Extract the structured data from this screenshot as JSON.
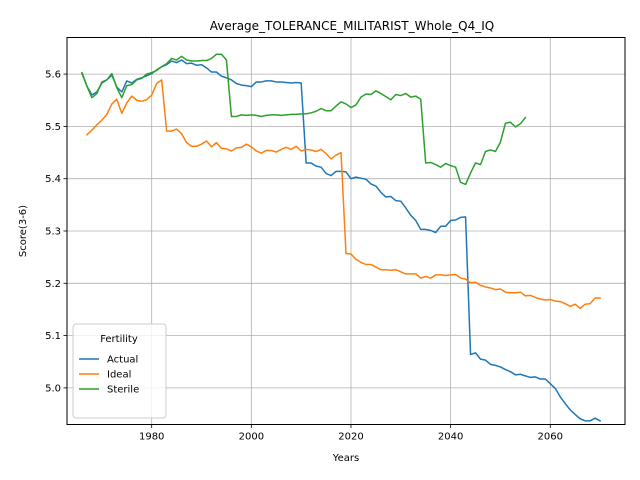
{
  "chart_data": {
    "type": "line",
    "title": "Average_TOLERANCE_MILITARIST_Whole_Q4_IQ",
    "xlabel": "Years",
    "ylabel": "Score(3-6)",
    "xlim": [
      1963,
      2075
    ],
    "ylim": [
      4.93,
      5.67
    ],
    "xticks": [
      1980,
      2000,
      2020,
      2040,
      2060
    ],
    "yticks": [
      5.0,
      5.1,
      5.2,
      5.3,
      5.4,
      5.5,
      5.6
    ],
    "ytick_labels": [
      "5.0",
      "5.1",
      "5.2",
      "5.3",
      "5.4",
      "5.5",
      "5.6"
    ],
    "grid": true,
    "legend": {
      "title": "Fertility",
      "position": "lower-left"
    },
    "series": [
      {
        "name": "Actual",
        "color": "#1f77b4",
        "points": [
          [
            1966,
            5.601
          ],
          [
            1967,
            5.577
          ],
          [
            1968,
            5.56
          ],
          [
            1969,
            5.566
          ],
          [
            1970,
            5.583
          ],
          [
            1971,
            5.589
          ],
          [
            1972,
            5.598
          ],
          [
            1973,
            5.575
          ],
          [
            1974,
            5.566
          ],
          [
            1975,
            5.587
          ],
          [
            1976,
            5.583
          ],
          [
            1977,
            5.59
          ],
          [
            1978,
            5.593
          ],
          [
            1979,
            5.597
          ],
          [
            1980,
            5.601
          ],
          [
            1981,
            5.608
          ],
          [
            1982,
            5.614
          ],
          [
            1983,
            5.618
          ],
          [
            1984,
            5.625
          ],
          [
            1985,
            5.622
          ],
          [
            1986,
            5.627
          ],
          [
            1987,
            5.62
          ],
          [
            1988,
            5.621
          ],
          [
            1989,
            5.617
          ],
          [
            1990,
            5.618
          ],
          [
            1991,
            5.612
          ],
          [
            1992,
            5.604
          ],
          [
            1993,
            5.604
          ],
          [
            1994,
            5.596
          ],
          [
            1995,
            5.593
          ],
          [
            1996,
            5.589
          ],
          [
            1997,
            5.582
          ],
          [
            1998,
            5.579
          ],
          [
            1999,
            5.578
          ],
          [
            2000,
            5.576
          ],
          [
            2001,
            5.585
          ],
          [
            2002,
            5.585
          ],
          [
            2003,
            5.587
          ],
          [
            2004,
            5.587
          ],
          [
            2005,
            5.585
          ],
          [
            2006,
            5.585
          ],
          [
            2007,
            5.584
          ],
          [
            2008,
            5.583
          ],
          [
            2009,
            5.584
          ],
          [
            2010,
            5.583
          ],
          [
            2011,
            5.43
          ],
          [
            2012,
            5.43
          ],
          [
            2013,
            5.424
          ],
          [
            2014,
            5.422
          ],
          [
            2015,
            5.41
          ],
          [
            2016,
            5.406
          ],
          [
            2017,
            5.414
          ],
          [
            2018,
            5.414
          ],
          [
            2019,
            5.413
          ],
          [
            2020,
            5.4
          ],
          [
            2021,
            5.403
          ],
          [
            2022,
            5.401
          ],
          [
            2023,
            5.399
          ],
          [
            2024,
            5.39
          ],
          [
            2025,
            5.386
          ],
          [
            2026,
            5.374
          ],
          [
            2027,
            5.365
          ],
          [
            2028,
            5.366
          ],
          [
            2029,
            5.358
          ],
          [
            2030,
            5.357
          ],
          [
            2031,
            5.344
          ],
          [
            2032,
            5.33
          ],
          [
            2033,
            5.32
          ],
          [
            2034,
            5.303
          ],
          [
            2035,
            5.303
          ],
          [
            2036,
            5.301
          ],
          [
            2037,
            5.297
          ],
          [
            2038,
            5.309
          ],
          [
            2039,
            5.309
          ],
          [
            2040,
            5.32
          ],
          [
            2041,
            5.321
          ],
          [
            2042,
            5.326
          ],
          [
            2043,
            5.327
          ],
          [
            2044,
            5.064
          ],
          [
            2045,
            5.067
          ],
          [
            2046,
            5.055
          ],
          [
            2047,
            5.053
          ],
          [
            2048,
            5.045
          ],
          [
            2049,
            5.043
          ],
          [
            2050,
            5.04
          ],
          [
            2051,
            5.035
          ],
          [
            2052,
            5.031
          ],
          [
            2053,
            5.025
          ],
          [
            2054,
            5.026
          ],
          [
            2055,
            5.023
          ],
          [
            2056,
            5.02
          ],
          [
            2057,
            5.021
          ],
          [
            2058,
            5.017
          ],
          [
            2059,
            5.017
          ],
          [
            2060,
            5.008
          ],
          [
            2061,
            4.999
          ],
          [
            2062,
            4.983
          ],
          [
            2063,
            4.97
          ],
          [
            2064,
            4.958
          ],
          [
            2065,
            4.949
          ],
          [
            2066,
            4.941
          ],
          [
            2067,
            4.937
          ],
          [
            2068,
            4.937
          ],
          [
            2069,
            4.942
          ],
          [
            2070,
            4.937
          ]
        ]
      },
      {
        "name": "Ideal",
        "color": "#ff7f0e",
        "points": [
          [
            1967,
            5.484
          ],
          [
            1968,
            5.493
          ],
          [
            1969,
            5.503
          ],
          [
            1970,
            5.512
          ],
          [
            1971,
            5.523
          ],
          [
            1972,
            5.543
          ],
          [
            1973,
            5.552
          ],
          [
            1974,
            5.525
          ],
          [
            1975,
            5.545
          ],
          [
            1976,
            5.558
          ],
          [
            1977,
            5.55
          ],
          [
            1978,
            5.548
          ],
          [
            1979,
            5.551
          ],
          [
            1980,
            5.56
          ],
          [
            1981,
            5.582
          ],
          [
            1982,
            5.589
          ],
          [
            1983,
            5.491
          ],
          [
            1984,
            5.491
          ],
          [
            1985,
            5.495
          ],
          [
            1986,
            5.486
          ],
          [
            1987,
            5.469
          ],
          [
            1988,
            5.462
          ],
          [
            1989,
            5.462
          ],
          [
            1990,
            5.466
          ],
          [
            1991,
            5.472
          ],
          [
            1992,
            5.461
          ],
          [
            1993,
            5.469
          ],
          [
            1994,
            5.458
          ],
          [
            1995,
            5.457
          ],
          [
            1996,
            5.453
          ],
          [
            1997,
            5.459
          ],
          [
            1998,
            5.46
          ],
          [
            1999,
            5.466
          ],
          [
            2000,
            5.461
          ],
          [
            2001,
            5.453
          ],
          [
            2002,
            5.449
          ],
          [
            2003,
            5.454
          ],
          [
            2004,
            5.454
          ],
          [
            2005,
            5.451
          ],
          [
            2006,
            5.456
          ],
          [
            2007,
            5.46
          ],
          [
            2008,
            5.456
          ],
          [
            2009,
            5.462
          ],
          [
            2010,
            5.453
          ],
          [
            2011,
            5.456
          ],
          [
            2012,
            5.455
          ],
          [
            2013,
            5.452
          ],
          [
            2014,
            5.456
          ],
          [
            2015,
            5.448
          ],
          [
            2016,
            5.438
          ],
          [
            2017,
            5.445
          ],
          [
            2018,
            5.45
          ],
          [
            2019,
            5.257
          ],
          [
            2020,
            5.256
          ],
          [
            2021,
            5.246
          ],
          [
            2022,
            5.24
          ],
          [
            2023,
            5.236
          ],
          [
            2024,
            5.236
          ],
          [
            2025,
            5.231
          ],
          [
            2026,
            5.226
          ],
          [
            2027,
            5.226
          ],
          [
            2028,
            5.225
          ],
          [
            2029,
            5.226
          ],
          [
            2030,
            5.222
          ],
          [
            2031,
            5.218
          ],
          [
            2032,
            5.218
          ],
          [
            2033,
            5.218
          ],
          [
            2034,
            5.21
          ],
          [
            2035,
            5.213
          ],
          [
            2036,
            5.21
          ],
          [
            2037,
            5.216
          ],
          [
            2038,
            5.216
          ],
          [
            2039,
            5.215
          ],
          [
            2040,
            5.216
          ],
          [
            2041,
            5.217
          ],
          [
            2042,
            5.21
          ],
          [
            2043,
            5.208
          ],
          [
            2044,
            5.201
          ],
          [
            2045,
            5.202
          ],
          [
            2046,
            5.196
          ],
          [
            2047,
            5.193
          ],
          [
            2048,
            5.191
          ],
          [
            2049,
            5.188
          ],
          [
            2050,
            5.189
          ],
          [
            2051,
            5.183
          ],
          [
            2052,
            5.182
          ],
          [
            2053,
            5.182
          ],
          [
            2054,
            5.183
          ],
          [
            2055,
            5.176
          ],
          [
            2056,
            5.177
          ],
          [
            2057,
            5.173
          ],
          [
            2058,
            5.17
          ],
          [
            2059,
            5.168
          ],
          [
            2060,
            5.169
          ],
          [
            2061,
            5.166
          ],
          [
            2062,
            5.165
          ],
          [
            2063,
            5.161
          ],
          [
            2064,
            5.156
          ],
          [
            2065,
            5.16
          ],
          [
            2066,
            5.152
          ],
          [
            2067,
            5.16
          ],
          [
            2068,
            5.161
          ],
          [
            2069,
            5.172
          ],
          [
            2070,
            5.172
          ]
        ]
      },
      {
        "name": "Sterile",
        "color": "#2ca02c",
        "points": [
          [
            1966,
            5.603
          ],
          [
            1967,
            5.577
          ],
          [
            1968,
            5.555
          ],
          [
            1969,
            5.563
          ],
          [
            1970,
            5.585
          ],
          [
            1971,
            5.589
          ],
          [
            1972,
            5.601
          ],
          [
            1973,
            5.574
          ],
          [
            1974,
            5.555
          ],
          [
            1975,
            5.578
          ],
          [
            1976,
            5.58
          ],
          [
            1977,
            5.589
          ],
          [
            1978,
            5.592
          ],
          [
            1979,
            5.6
          ],
          [
            1980,
            5.603
          ],
          [
            1981,
            5.607
          ],
          [
            1982,
            5.614
          ],
          [
            1983,
            5.62
          ],
          [
            1984,
            5.63
          ],
          [
            1985,
            5.627
          ],
          [
            1986,
            5.634
          ],
          [
            1987,
            5.627
          ],
          [
            1988,
            5.625
          ],
          [
            1989,
            5.625
          ],
          [
            1990,
            5.626
          ],
          [
            1991,
            5.626
          ],
          [
            1992,
            5.63
          ],
          [
            1993,
            5.638
          ],
          [
            1994,
            5.638
          ],
          [
            1995,
            5.627
          ],
          [
            1996,
            5.519
          ],
          [
            1997,
            5.519
          ],
          [
            1998,
            5.522
          ],
          [
            1999,
            5.521
          ],
          [
            2000,
            5.522
          ],
          [
            2001,
            5.521
          ],
          [
            2002,
            5.519
          ],
          [
            2003,
            5.521
          ],
          [
            2004,
            5.522
          ],
          [
            2005,
            5.522
          ],
          [
            2006,
            5.521
          ],
          [
            2007,
            5.522
          ],
          [
            2008,
            5.523
          ],
          [
            2009,
            5.523
          ],
          [
            2010,
            5.524
          ],
          [
            2011,
            5.524
          ],
          [
            2012,
            5.526
          ],
          [
            2013,
            5.529
          ],
          [
            2014,
            5.534
          ],
          [
            2015,
            5.53
          ],
          [
            2016,
            5.53
          ],
          [
            2017,
            5.539
          ],
          [
            2018,
            5.547
          ],
          [
            2019,
            5.543
          ],
          [
            2020,
            5.536
          ],
          [
            2021,
            5.541
          ],
          [
            2022,
            5.556
          ],
          [
            2023,
            5.562
          ],
          [
            2024,
            5.561
          ],
          [
            2025,
            5.568
          ],
          [
            2026,
            5.563
          ],
          [
            2027,
            5.557
          ],
          [
            2028,
            5.551
          ],
          [
            2029,
            5.561
          ],
          [
            2030,
            5.559
          ],
          [
            2031,
            5.563
          ],
          [
            2032,
            5.556
          ],
          [
            2033,
            5.558
          ],
          [
            2034,
            5.552
          ],
          [
            2035,
            5.43
          ],
          [
            2036,
            5.431
          ],
          [
            2037,
            5.427
          ],
          [
            2038,
            5.422
          ],
          [
            2039,
            5.429
          ],
          [
            2040,
            5.425
          ],
          [
            2041,
            5.422
          ],
          [
            2042,
            5.393
          ],
          [
            2043,
            5.389
          ],
          [
            2044,
            5.411
          ],
          [
            2045,
            5.43
          ],
          [
            2046,
            5.427
          ],
          [
            2047,
            5.452
          ],
          [
            2048,
            5.455
          ],
          [
            2049,
            5.452
          ],
          [
            2050,
            5.47
          ],
          [
            2051,
            5.506
          ],
          [
            2052,
            5.508
          ],
          [
            2053,
            5.499
          ],
          [
            2054,
            5.505
          ],
          [
            2055,
            5.517
          ]
        ]
      }
    ]
  }
}
